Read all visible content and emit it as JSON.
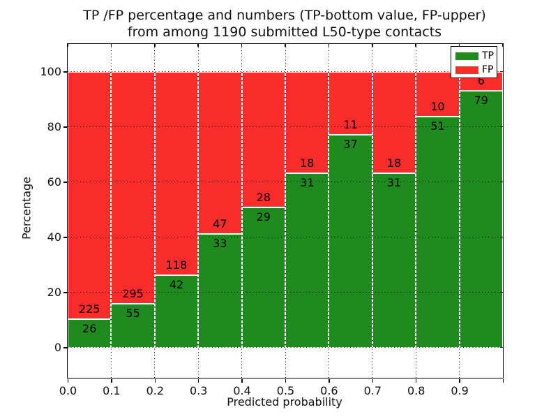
{
  "figure": {
    "background": "#ffffff",
    "title_line1": "TP /FP percentage and numbers (TP-bottom value, FP-upper)",
    "title_line2": "from among 1190 submitted L50-type contacts"
  },
  "chart_data": {
    "type": "bar",
    "subtype": "stacked-percentage-histogram",
    "title": "TP /FP percentage and numbers (TP-bottom value, FP-upper)\nfrom among 1190 submitted L50-type contacts",
    "xlabel": "Predicted probability",
    "ylabel": "Percentage",
    "total_submitted": 1190,
    "bin_edges": [
      0.0,
      0.1,
      0.2,
      0.3,
      0.4,
      0.5,
      0.6,
      0.7,
      0.8,
      0.9,
      1.0
    ],
    "series": [
      {
        "name": "TP",
        "color": "#1f8b1f",
        "counts": [
          26,
          55,
          42,
          33,
          29,
          31,
          37,
          31,
          51,
          79
        ]
      },
      {
        "name": "FP",
        "color": "#f92b2b",
        "counts": [
          225,
          295,
          118,
          47,
          28,
          18,
          11,
          18,
          10,
          6
        ]
      }
    ],
    "stack_note": "each bar normalized to 100%; TP on bottom, FP on top; labels show raw counts",
    "xticks": [
      "0.0",
      "0.1",
      "0.2",
      "0.3",
      "0.4",
      "0.5",
      "0.6",
      "0.7",
      "0.8",
      "0.9"
    ],
    "yticks": [
      0,
      20,
      40,
      60,
      80,
      100
    ],
    "xlim": [
      0.0,
      1.0
    ],
    "ylim": [
      -11,
      110
    ],
    "grid": true,
    "legend": {
      "position": "upper right",
      "entries": [
        "TP",
        "FP"
      ]
    }
  }
}
